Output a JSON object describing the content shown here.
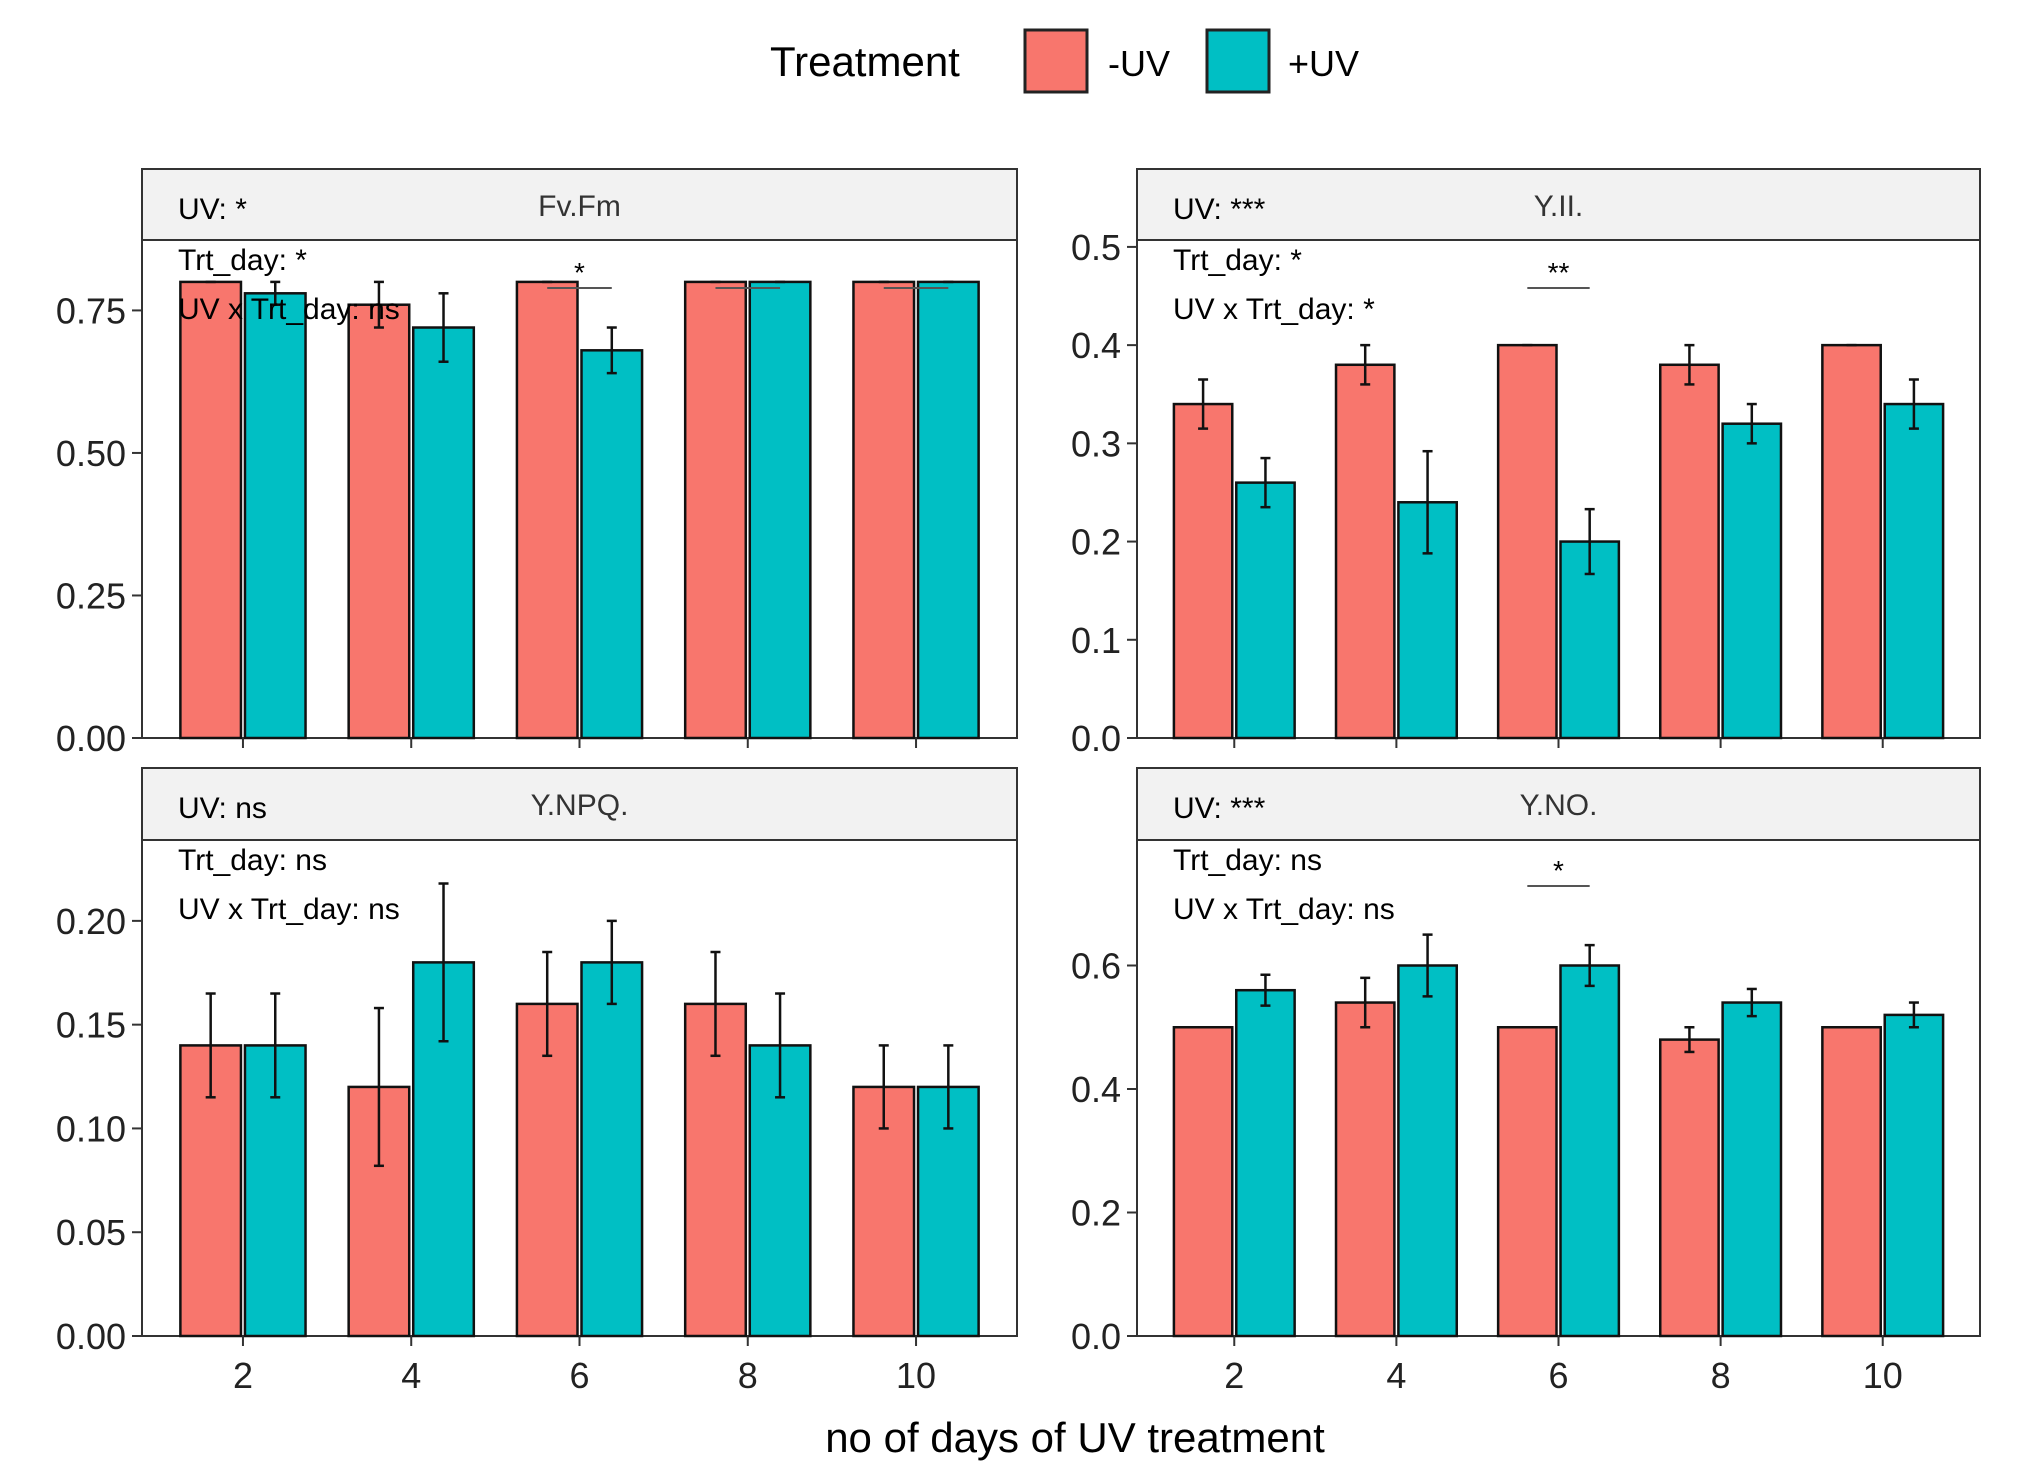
{
  "chart_data": {
    "type": "bar",
    "x_title": "no of days of UV treatment",
    "legend": {
      "title": "Treatment",
      "entries": [
        {
          "name": "-UV",
          "color": "#F8766D"
        },
        {
          "name": "+UV",
          "color": "#00BFC4"
        }
      ],
      "placement": "top"
    },
    "categories": [
      "2",
      "4",
      "6",
      "8",
      "10"
    ],
    "panels": [
      {
        "title": "Fv.Fm",
        "annotations": [
          "UV: *",
          "Trt_day: *",
          "UV x Trt_day: ns"
        ],
        "ylim": [
          0,
          0.87
        ],
        "y_ticks": [
          {
            "v": 0,
            "label": "0.00"
          },
          {
            "v": 0.25,
            "label": "0.25"
          },
          {
            "v": 0.5,
            "label": "0.50"
          },
          {
            "v": 0.75,
            "label": "0.75"
          }
        ],
        "series": [
          {
            "name": "-UV",
            "values": [
              0.8,
              0.76,
              0.8,
              0.8,
              0.8
            ],
            "errors": [
              0,
              0.04,
              0,
              0,
              0
            ]
          },
          {
            "name": "+UV",
            "values": [
              0.78,
              0.72,
              0.68,
              0.8,
              0.8
            ],
            "errors": [
              0.02,
              0.06,
              0.04,
              0,
              0
            ]
          }
        ],
        "significance": [
          {
            "category": "6",
            "label": "*"
          },
          {
            "category": "8",
            "label": ""
          },
          {
            "category": "10",
            "label": ""
          }
        ]
      },
      {
        "title": "Y.II.",
        "annotations": [
          "UV: ***",
          "Trt_day: *",
          "UV x Trt_day: *"
        ],
        "ylim": [
          0,
          0.505
        ],
        "y_ticks": [
          {
            "v": 0,
            "label": "0.0"
          },
          {
            "v": 0.1,
            "label": "0.1"
          },
          {
            "v": 0.2,
            "label": "0.2"
          },
          {
            "v": 0.3,
            "label": "0.3"
          },
          {
            "v": 0.4,
            "label": "0.4"
          },
          {
            "v": 0.5,
            "label": "0.5"
          }
        ],
        "series": [
          {
            "name": "-UV",
            "values": [
              0.34,
              0.38,
              0.4,
              0.38,
              0.4
            ],
            "errors": [
              0.025,
              0.02,
              0,
              0.02,
              0
            ]
          },
          {
            "name": "+UV",
            "values": [
              0.26,
              0.24,
              0.2,
              0.32,
              0.34
            ],
            "errors": [
              0.025,
              0.052,
              0.033,
              0.02,
              0.025
            ]
          }
        ],
        "significance": [
          {
            "category": "6",
            "label": "**"
          }
        ]
      },
      {
        "title": "Y.NPQ.",
        "annotations": [
          "UV: ns",
          "Trt_day: ns",
          "UV x Trt_day: ns"
        ],
        "ylim": [
          0,
          0.238
        ],
        "y_ticks": [
          {
            "v": 0,
            "label": "0.00"
          },
          {
            "v": 0.05,
            "label": "0.05"
          },
          {
            "v": 0.1,
            "label": "0.10"
          },
          {
            "v": 0.15,
            "label": "0.15"
          },
          {
            "v": 0.2,
            "label": "0.20"
          }
        ],
        "series": [
          {
            "name": "-UV",
            "values": [
              0.14,
              0.12,
              0.16,
              0.16,
              0.12
            ],
            "errors": [
              0.025,
              0.038,
              0.025,
              0.025,
              0.02
            ]
          },
          {
            "name": "+UV",
            "values": [
              0.14,
              0.18,
              0.18,
              0.14,
              0.12
            ],
            "errors": [
              0.025,
              0.038,
              0.02,
              0.025,
              0.02
            ]
          }
        ],
        "significance": []
      },
      {
        "title": "Y.NO.",
        "annotations": [
          "UV: ***",
          "Trt_day: ns",
          "UV x Trt_day: ns"
        ],
        "ylim": [
          0,
          0.8
        ],
        "y_ticks": [
          {
            "v": 0,
            "label": "0.0"
          },
          {
            "v": 0.2,
            "label": "0.2"
          },
          {
            "v": 0.4,
            "label": "0.4"
          },
          {
            "v": 0.6,
            "label": "0.6"
          }
        ],
        "series": [
          {
            "name": "-UV",
            "values": [
              0.5,
              0.54,
              0.5,
              0.48,
              0.5
            ],
            "errors": [
              0,
              0.04,
              0,
              0.02,
              0
            ]
          },
          {
            "name": "+UV",
            "values": [
              0.56,
              0.6,
              0.6,
              0.54,
              0.52
            ],
            "errors": [
              0.025,
              0.05,
              0.033,
              0.022,
              0.02
            ]
          }
        ],
        "significance": [
          {
            "category": "6",
            "label": "*"
          }
        ]
      }
    ]
  }
}
